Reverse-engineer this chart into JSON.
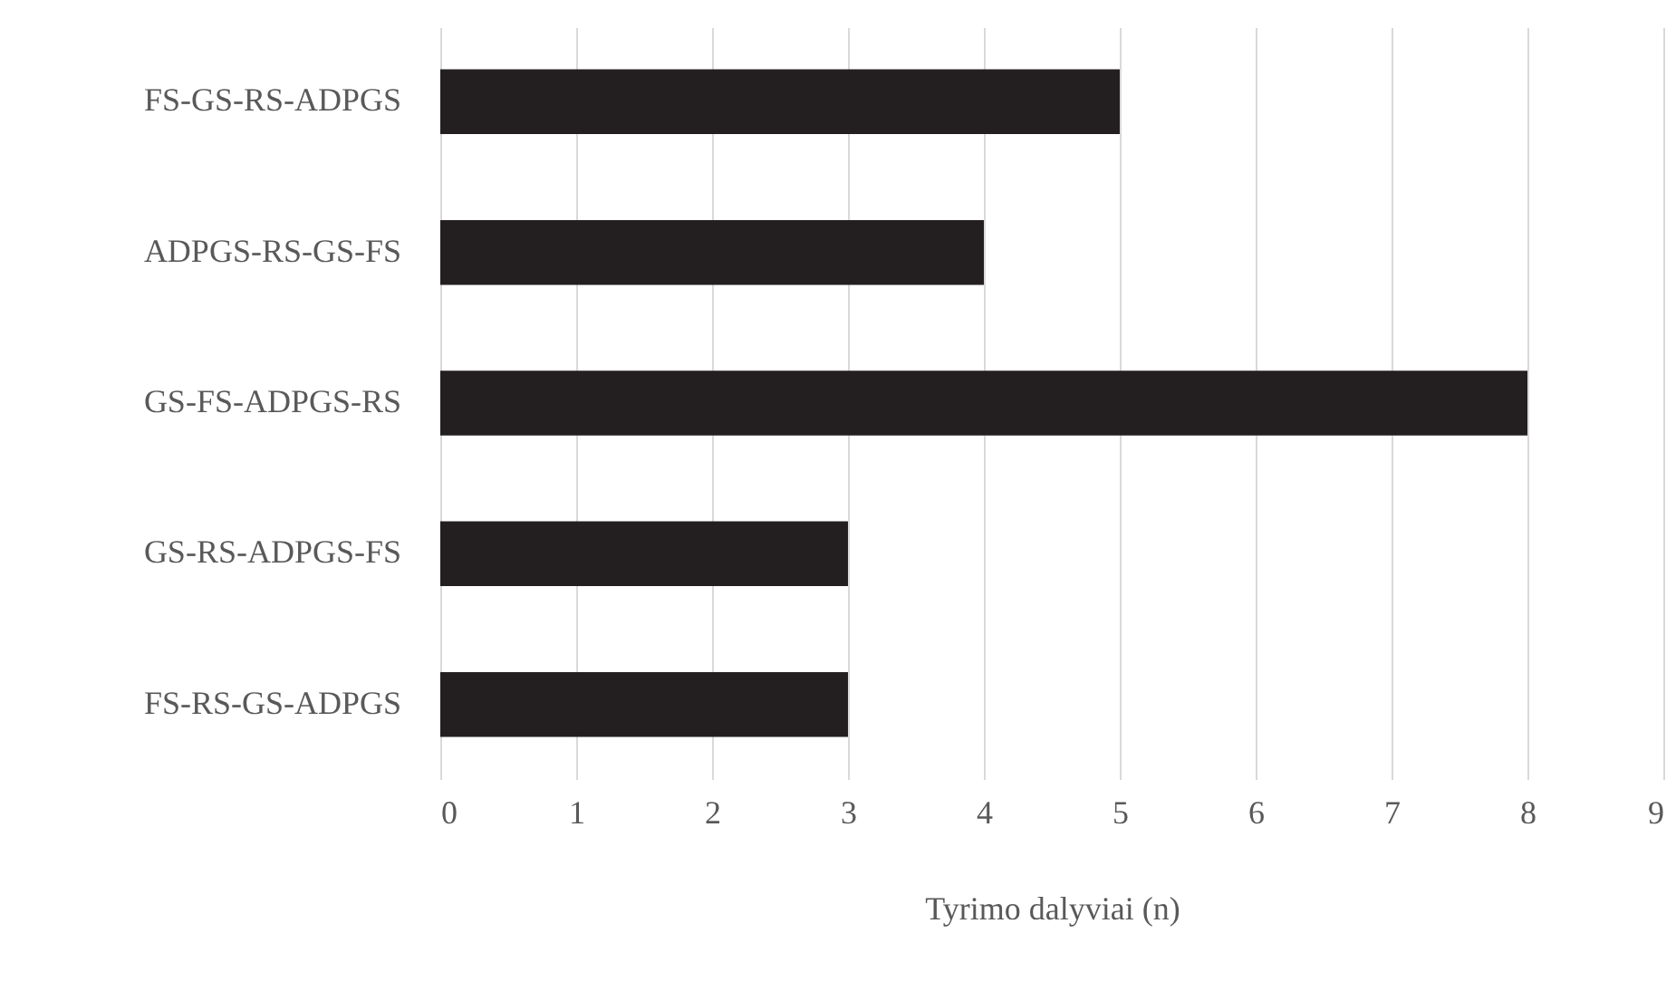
{
  "chart_data": {
    "type": "bar",
    "orientation": "horizontal",
    "xlabel": "Tyrimo dalyviai (n)",
    "categories": [
      "FS-GS-RS-ADPGS",
      "ADPGS-RS-GS-FS",
      "GS-FS-ADPGS-RS",
      "GS-RS-ADPGS-FS",
      "FS-RS-GS-ADPGS"
    ],
    "values": [
      5,
      4,
      8,
      3,
      3
    ],
    "color": "#231f20",
    "xlim": [
      0,
      9
    ],
    "xticks": [
      0,
      1,
      2,
      3,
      4,
      5,
      6,
      7,
      8,
      9
    ],
    "grid": "x"
  }
}
